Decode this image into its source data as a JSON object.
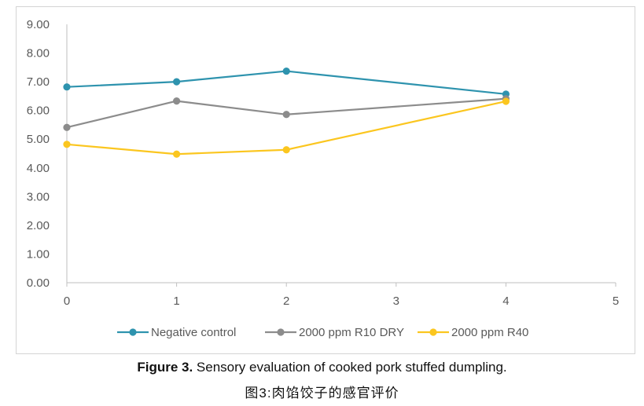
{
  "chart_data": {
    "type": "line",
    "title": "",
    "xlabel": "",
    "ylabel": "",
    "xlim": [
      0,
      5
    ],
    "ylim": [
      0,
      9
    ],
    "x_ticks": [
      "0",
      "1",
      "2",
      "3",
      "4",
      "5"
    ],
    "y_ticks": [
      "0.00",
      "1.00",
      "2.00",
      "3.00",
      "4.00",
      "5.00",
      "6.00",
      "7.00",
      "8.00",
      "9.00"
    ],
    "grid": false,
    "legend_position": "bottom",
    "x": [
      0,
      1,
      2,
      4
    ],
    "series": [
      {
        "name": "Negative control",
        "color": "#2e93ae",
        "values": [
          6.82,
          7.0,
          7.37,
          6.57
        ]
      },
      {
        "name": "2000 ppm R10 DRY",
        "color": "#8c8c8c",
        "values": [
          5.41,
          6.33,
          5.86,
          6.41
        ]
      },
      {
        "name": "2000 ppm R40",
        "color": "#fbc61f",
        "values": [
          4.82,
          4.48,
          4.63,
          6.32
        ]
      }
    ]
  },
  "caption": {
    "label": "Figure 3.",
    "text": " Sensory evaluation of cooked pork stuffed dumpling.",
    "chinese": "图3:肉馅饺子的感官评价"
  }
}
